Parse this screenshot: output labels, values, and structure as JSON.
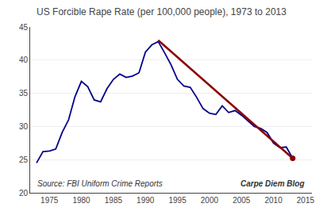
{
  "chart_data": {
    "type": "line",
    "title": "US Forcible Rape Rate (per 100,000 people), 1973 to 2013",
    "x": [
      1973,
      1974,
      1975,
      1976,
      1977,
      1978,
      1979,
      1980,
      1981,
      1982,
      1983,
      1984,
      1985,
      1986,
      1987,
      1988,
      1989,
      1990,
      1991,
      1992,
      1993,
      1994,
      1995,
      1996,
      1997,
      1998,
      1999,
      2000,
      2001,
      2002,
      2003,
      2004,
      2005,
      2006,
      2007,
      2008,
      2009,
      2010,
      2011,
      2012,
      2013
    ],
    "series": [
      {
        "color": "#00008B",
        "line_style": "solid",
        "values": [
          24.5,
          26.2,
          26.3,
          26.6,
          29.1,
          31.0,
          34.5,
          36.8,
          36.0,
          34.0,
          33.7,
          35.7,
          37.1,
          37.9,
          37.4,
          37.6,
          38.1,
          41.2,
          42.3,
          42.8,
          41.1,
          39.3,
          37.1,
          36.1,
          35.9,
          34.4,
          32.7,
          32.0,
          31.8,
          33.1,
          32.1,
          32.4,
          31.7,
          30.9,
          30.0,
          29.7,
          29.1,
          27.5,
          26.8,
          26.9,
          25.2
        ]
      },
      {
        "color": "#8B0000",
        "line_style": "solid",
        "x": [
          1992,
          2013
        ],
        "values": [
          43.0,
          25.2
        ]
      },
      {
        "color": "#8B0000",
        "type": "scatter",
        "marker": "o",
        "x": [
          2013
        ],
        "values": [
          25.2
        ]
      }
    ],
    "xlim": [
      1972,
      2016
    ],
    "ylim": [
      20,
      45
    ],
    "xticks": [
      1975,
      1980,
      1985,
      1990,
      1995,
      2000,
      2005,
      2010,
      2015
    ],
    "yticks": [
      20,
      25,
      30,
      35,
      40,
      45
    ],
    "grid": "y",
    "annotations": [
      "Source: FBI Uniform Crime Reports",
      "Carpe Diem Blog"
    ]
  }
}
